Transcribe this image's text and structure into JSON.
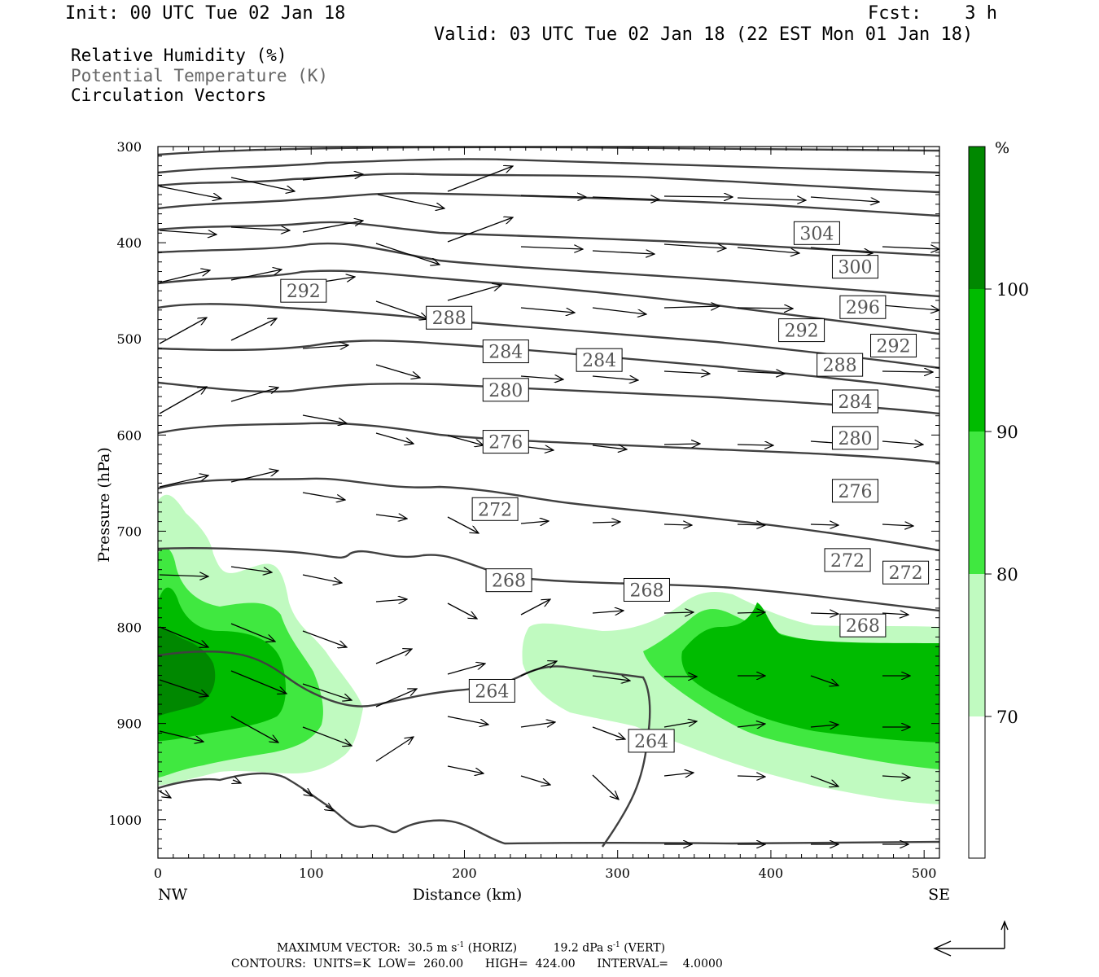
{
  "header": {
    "init": "Init: 00 UTC Tue 02 Jan 18",
    "fcst": "Fcst:    3 h",
    "valid": "Valid: 03 UTC Tue 02 Jan 18 (22 EST Mon 01 Jan 18)"
  },
  "legend": {
    "line1": "Relative Humidity (%)",
    "line2": "Potential Temperature (K)",
    "line3": "Circulation Vectors"
  },
  "footer": {
    "line1_label": "MAXIMUM VECTOR:",
    "line1_horiz": "30.5 m s",
    "line1_horiz_unit": "(HORIZ)",
    "line1_vert": "19.2 dPa s",
    "line1_vert_unit": "(VERT)",
    "line2": "CONTOURS:  UNITS=K  LOW=  260.00      HIGH=  424.00      INTERVAL=    4.0000"
  },
  "colors": {
    "rh70": "#c0fac0",
    "rh80": "#40e840",
    "rh90": "#00bb00",
    "rh100": "#008800",
    "theta": "#404040",
    "frame": "#000000"
  },
  "chart_data": {
    "type": "cross-section",
    "xlabel": "Distance (km)",
    "ylabel": "Pressure (hPa)",
    "xlim": [
      0,
      510
    ],
    "ylim": [
      1040,
      300
    ],
    "x_ticks": [
      0,
      100,
      200,
      300,
      400,
      500
    ],
    "y_ticks": [
      300,
      400,
      500,
      600,
      700,
      800,
      900,
      1000
    ],
    "x_end_labels": [
      "NW",
      "SE"
    ],
    "colorbar": {
      "unit": "%",
      "levels": [
        70,
        80,
        90,
        100
      ],
      "colors": [
        "#c0fac0",
        "#40e840",
        "#00bb00",
        "#008800"
      ]
    },
    "theta_labels": [
      {
        "value": "304",
        "x": 430,
        "p": 390
      },
      {
        "value": "300",
        "x": 455,
        "p": 425
      },
      {
        "value": "296",
        "x": 460,
        "p": 467
      },
      {
        "value": "292",
        "x": 95,
        "p": 450
      },
      {
        "value": "292",
        "x": 420,
        "p": 491
      },
      {
        "value": "292",
        "x": 480,
        "p": 507
      },
      {
        "value": "288",
        "x": 190,
        "p": 478
      },
      {
        "value": "288",
        "x": 445,
        "p": 527
      },
      {
        "value": "284",
        "x": 227,
        "p": 513
      },
      {
        "value": "284",
        "x": 288,
        "p": 522
      },
      {
        "value": "284",
        "x": 455,
        "p": 565
      },
      {
        "value": "280",
        "x": 227,
        "p": 553
      },
      {
        "value": "280",
        "x": 455,
        "p": 603
      },
      {
        "value": "276",
        "x": 227,
        "p": 607
      },
      {
        "value": "276",
        "x": 455,
        "p": 658
      },
      {
        "value": "272",
        "x": 220,
        "p": 677
      },
      {
        "value": "272",
        "x": 450,
        "p": 730
      },
      {
        "value": "272",
        "x": 488,
        "p": 743
      },
      {
        "value": "268",
        "x": 229,
        "p": 751
      },
      {
        "value": "268",
        "x": 319,
        "p": 761
      },
      {
        "value": "268",
        "x": 460,
        "p": 798
      },
      {
        "value": "264",
        "x": 218,
        "p": 866
      },
      {
        "value": "264",
        "x": 322,
        "p": 918
      }
    ],
    "max_vector_horiz": 30.5,
    "max_vector_vert": 19.2
  }
}
